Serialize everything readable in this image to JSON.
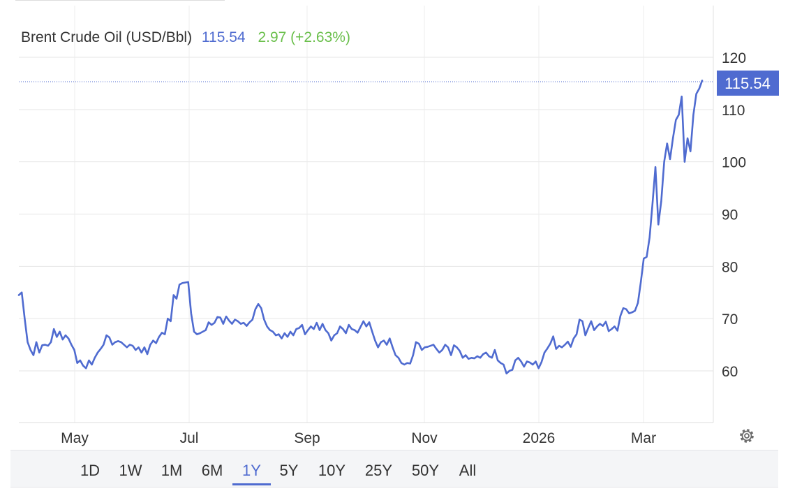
{
  "header": {
    "name": "Brent Crude Oil (USD/Bbl)",
    "price": "115.54",
    "change": "2.97 (+2.63%)"
  },
  "last_price_label": "115.54",
  "colors": {
    "line": "#4f6bd0",
    "price_text": "#4f6bd0",
    "change_text": "#6abf4b",
    "label_box": "#4f6bd0",
    "grid": "#e6e6e6"
  },
  "range_buttons": [
    {
      "label": "1D",
      "active": false
    },
    {
      "label": "1W",
      "active": false
    },
    {
      "label": "1M",
      "active": false
    },
    {
      "label": "6M",
      "active": false
    },
    {
      "label": "1Y",
      "active": true
    },
    {
      "label": "5Y",
      "active": false
    },
    {
      "label": "10Y",
      "active": false
    },
    {
      "label": "25Y",
      "active": false
    },
    {
      "label": "50Y",
      "active": false
    },
    {
      "label": "All",
      "active": false
    }
  ],
  "settings_icon": "gear-icon",
  "chart_data": {
    "type": "line",
    "title": "Brent Crude Oil (USD/Bbl)",
    "xlabel": "",
    "ylabel": "",
    "y_ticks": [
      60,
      70,
      80,
      90,
      100,
      110,
      120
    ],
    "ylim": [
      50,
      127
    ],
    "x_ticks": [
      "May",
      "Jul",
      "Sep",
      "Nov",
      "2026",
      "Mar"
    ],
    "grid": true,
    "series": [
      {
        "name": "",
        "values": [
          74.5,
          75.0,
          70.0,
          65.5,
          64.0,
          63.0,
          65.5,
          63.5,
          64.9,
          65.0,
          64.8,
          65.5,
          68.0,
          66.5,
          67.5,
          66.0,
          66.8,
          66.2,
          65.0,
          64.0,
          61.5,
          62.0,
          61.0,
          60.5,
          62.0,
          61.2,
          62.5,
          63.5,
          64.2,
          65.0,
          66.8,
          66.4,
          65.0,
          65.5,
          65.7,
          65.5,
          65.0,
          64.5,
          65.0,
          64.8,
          64.0,
          64.5,
          63.5,
          64.5,
          63.2,
          65.0,
          65.8,
          65.3,
          66.5,
          67.3,
          67.0,
          70.0,
          69.5,
          74.5,
          73.8,
          76.5,
          76.8,
          76.9,
          77.0,
          71.0,
          67.5,
          67.0,
          67.2,
          67.5,
          67.8,
          69.3,
          68.8,
          69.2,
          70.3,
          70.2,
          69.0,
          70.4,
          69.6,
          69.0,
          69.8,
          69.5,
          69.0,
          69.2,
          68.6,
          69.3,
          69.8,
          71.8,
          72.8,
          72.0,
          69.8,
          68.5,
          67.8,
          67.5,
          66.8,
          67.0,
          66.2,
          67.2,
          66.5,
          67.5,
          66.8,
          68.0,
          68.2,
          68.8,
          67.0,
          67.8,
          68.5,
          68.0,
          69.2,
          67.8,
          69.0,
          67.8,
          67.2,
          65.8,
          66.8,
          67.2,
          68.5,
          68.0,
          67.2,
          68.8,
          68.0,
          67.8,
          67.3,
          68.4,
          69.5,
          68.5,
          69.3,
          67.5,
          65.8,
          64.5,
          65.5,
          65.8,
          65.0,
          66.2,
          64.5,
          63.0,
          62.5,
          61.5,
          61.2,
          61.5,
          61.4,
          63.0,
          65.5,
          65.2,
          64.0,
          64.5,
          64.6,
          64.8,
          65.0,
          64.2,
          63.5,
          64.0,
          65.0,
          64.5,
          63.0,
          64.9,
          64.5,
          63.8,
          62.5,
          63.0,
          62.3,
          62.5,
          62.4,
          62.8,
          62.5,
          63.2,
          63.5,
          62.8,
          62.5,
          64.0,
          62.0,
          61.5,
          61.2,
          59.5,
          60.0,
          60.2,
          62.0,
          62.5,
          61.8,
          60.8,
          61.8,
          61.6,
          61.2,
          61.8,
          60.5,
          61.7,
          63.5,
          64.3,
          65.2,
          66.6,
          64.2,
          64.8,
          64.5,
          65.0,
          65.6,
          64.6,
          66.2,
          67.0,
          69.8,
          69.5,
          66.8,
          68.2,
          69.5,
          67.8,
          68.5,
          69.0,
          68.6,
          69.4,
          67.6,
          68.0,
          68.5,
          67.7,
          70.5,
          72.0,
          71.8,
          71.0,
          71.2,
          71.5,
          73.0,
          77.0,
          81.5,
          81.8,
          85.5,
          92.0,
          99.0,
          88.0,
          92.5,
          100.0,
          103.5,
          100.5,
          104.5,
          108.0,
          109.0,
          112.5,
          100.0,
          104.5,
          102.0,
          109.0,
          113.0,
          114.0,
          115.54
        ]
      }
    ]
  }
}
